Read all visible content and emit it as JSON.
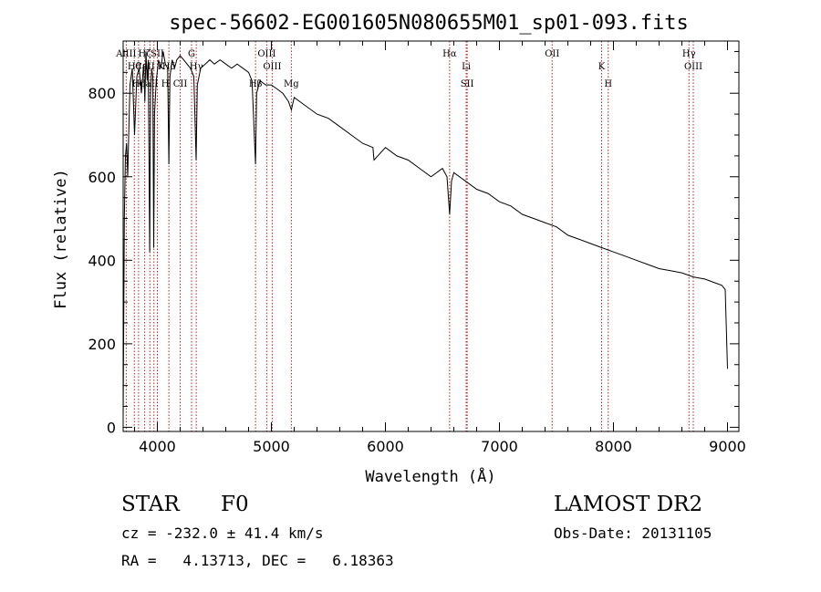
{
  "chart_data": {
    "type": "line",
    "title": "spec-56602-EG001605N080655M01_sp01-093.fits",
    "xlabel": "Wavelength (Å)",
    "ylabel": "Flux (relative)",
    "xlim": [
      3700,
      9100
    ],
    "ylim": [
      -10,
      925
    ],
    "x_ticks": [
      4000,
      5000,
      6000,
      7000,
      8000,
      9000
    ],
    "y_ticks": [
      0,
      200,
      400,
      600,
      800
    ],
    "series": [
      {
        "name": "flux",
        "x": [
          3700,
          3710,
          3720,
          3730,
          3740,
          3750,
          3760,
          3780,
          3800,
          3820,
          3840,
          3860,
          3880,
          3890,
          3900,
          3910,
          3920,
          3933,
          3940,
          3950,
          3960,
          3968,
          3975,
          3990,
          4010,
          4030,
          4050,
          4070,
          4090,
          4101,
          4110,
          4130,
          4150,
          4170,
          4200,
          4230,
          4260,
          4290,
          4320,
          4340,
          4350,
          4380,
          4420,
          4460,
          4500,
          4550,
          4600,
          4650,
          4700,
          4750,
          4800,
          4830,
          4861,
          4870,
          4900,
          4950,
          5000,
          5050,
          5100,
          5150,
          5175,
          5200,
          5300,
          5400,
          5500,
          5600,
          5700,
          5800,
          5890,
          5900,
          6000,
          6100,
          6200,
          6300,
          6400,
          6500,
          6540,
          6563,
          6580,
          6600,
          6700,
          6800,
          6900,
          7000,
          7100,
          7200,
          7300,
          7400,
          7500,
          7600,
          7700,
          7800,
          7900,
          8000,
          8100,
          8200,
          8300,
          8400,
          8500,
          8600,
          8700,
          8800,
          8900,
          8950,
          8980,
          9000
        ],
        "y": [
          20,
          500,
          650,
          680,
          600,
          720,
          820,
          860,
          700,
          840,
          860,
          800,
          870,
          780,
          900,
          830,
          880,
          420,
          800,
          860,
          840,
          430,
          750,
          830,
          880,
          860,
          900,
          870,
          860,
          630,
          840,
          880,
          860,
          880,
          890,
          880,
          870,
          860,
          840,
          640,
          820,
          860,
          870,
          880,
          870,
          880,
          870,
          860,
          870,
          860,
          850,
          830,
          630,
          800,
          830,
          820,
          820,
          810,
          800,
          780,
          760,
          790,
          770,
          750,
          740,
          720,
          700,
          680,
          670,
          640,
          670,
          650,
          640,
          620,
          600,
          620,
          600,
          510,
          590,
          610,
          590,
          570,
          560,
          540,
          530,
          510,
          500,
          490,
          480,
          460,
          450,
          440,
          430,
          420,
          410,
          400,
          390,
          380,
          375,
          370,
          360,
          355,
          345,
          340,
          330,
          140
        ],
        "color": "#000000"
      }
    ],
    "lines": [
      {
        "wl": 3727,
        "label": "AlIII"
      },
      {
        "wl": 3798,
        "label": "Hθ"
      },
      {
        "wl": 3835,
        "label": "Hη"
      },
      {
        "wl": 3889,
        "label": "Hζ"
      },
      {
        "wl": 3934,
        "label": "CaII K"
      },
      {
        "wl": 3970,
        "label": "CaII H"
      },
      {
        "wl": 4000,
        "label": "SII"
      },
      {
        "wl": 4101,
        "label": "Hδ"
      },
      {
        "wl": 4200,
        "label": "CII"
      },
      {
        "wl": 4300,
        "label": "G"
      },
      {
        "wl": 4341,
        "label": "Hγ"
      },
      {
        "wl": 4861,
        "label": "Hβ"
      },
      {
        "wl": 4959,
        "label": "OIII"
      },
      {
        "wl": 5007,
        "label": "OIII"
      },
      {
        "wl": 5175,
        "label": "Mg"
      },
      {
        "wl": 6563,
        "label": "Hα"
      },
      {
        "wl": 6708,
        "label": "Li"
      },
      {
        "wl": 6717,
        "label": "SII"
      },
      {
        "wl": 7462,
        "label": "OII"
      },
      {
        "wl": 7896,
        "label": "K"
      },
      {
        "wl": 7954,
        "label": "H"
      },
      {
        "wl": 8662,
        "label": "Hγ"
      },
      {
        "wl": 8700,
        "label": "OIII"
      }
    ]
  },
  "info": {
    "object_class": "STAR",
    "subclass": "F0",
    "survey": "LAMOST DR2",
    "cz": "cz = -232.0 ± 41.4 km/s",
    "obs_date": "Obs-Date: 20131105",
    "coords": "RA =   4.13713, DEC =   6.18363"
  }
}
